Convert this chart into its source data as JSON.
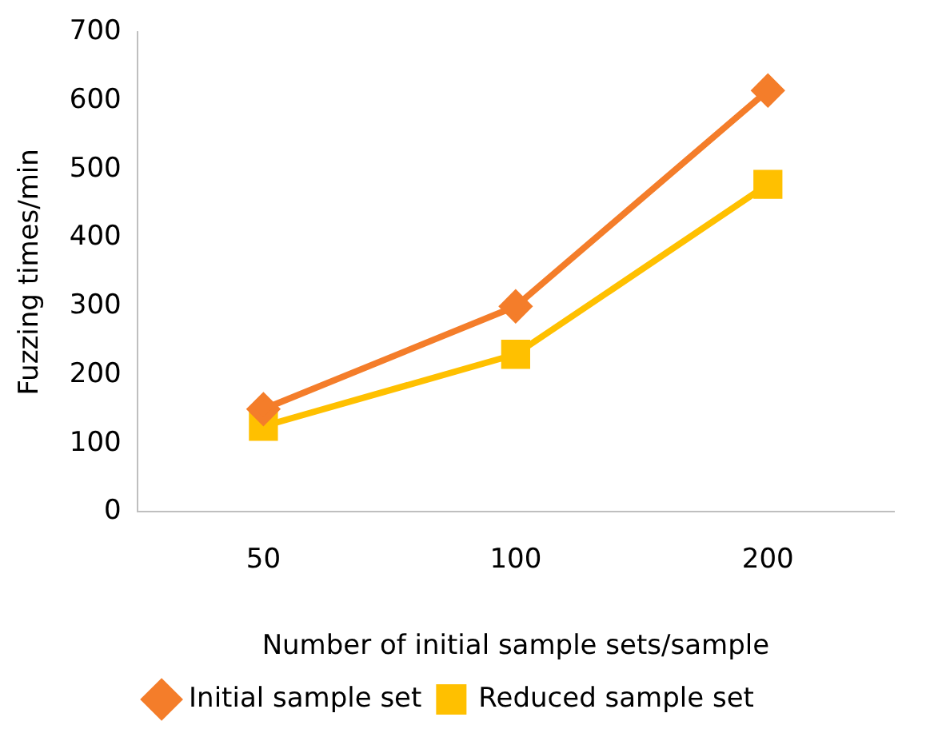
{
  "chart_data": {
    "type": "line",
    "xlabel": "Number of initial sample sets/sample",
    "ylabel": "Fuzzing times/min",
    "categories": [
      "50",
      "100",
      "200"
    ],
    "series": [
      {
        "name": "Initial sample set",
        "color": "#f47d2a",
        "values": [
          150,
          300,
          615
        ],
        "marker": "diamond"
      },
      {
        "name": "Reduced sample set",
        "color": "#ffc000",
        "values": [
          125,
          230,
          478
        ],
        "marker": "square"
      }
    ],
    "ylim": [
      0,
      700
    ],
    "yticks": [
      0,
      100,
      200,
      300,
      400,
      500,
      600,
      700
    ],
    "grid": false,
    "legend": "bottom",
    "line_style": "solid"
  }
}
